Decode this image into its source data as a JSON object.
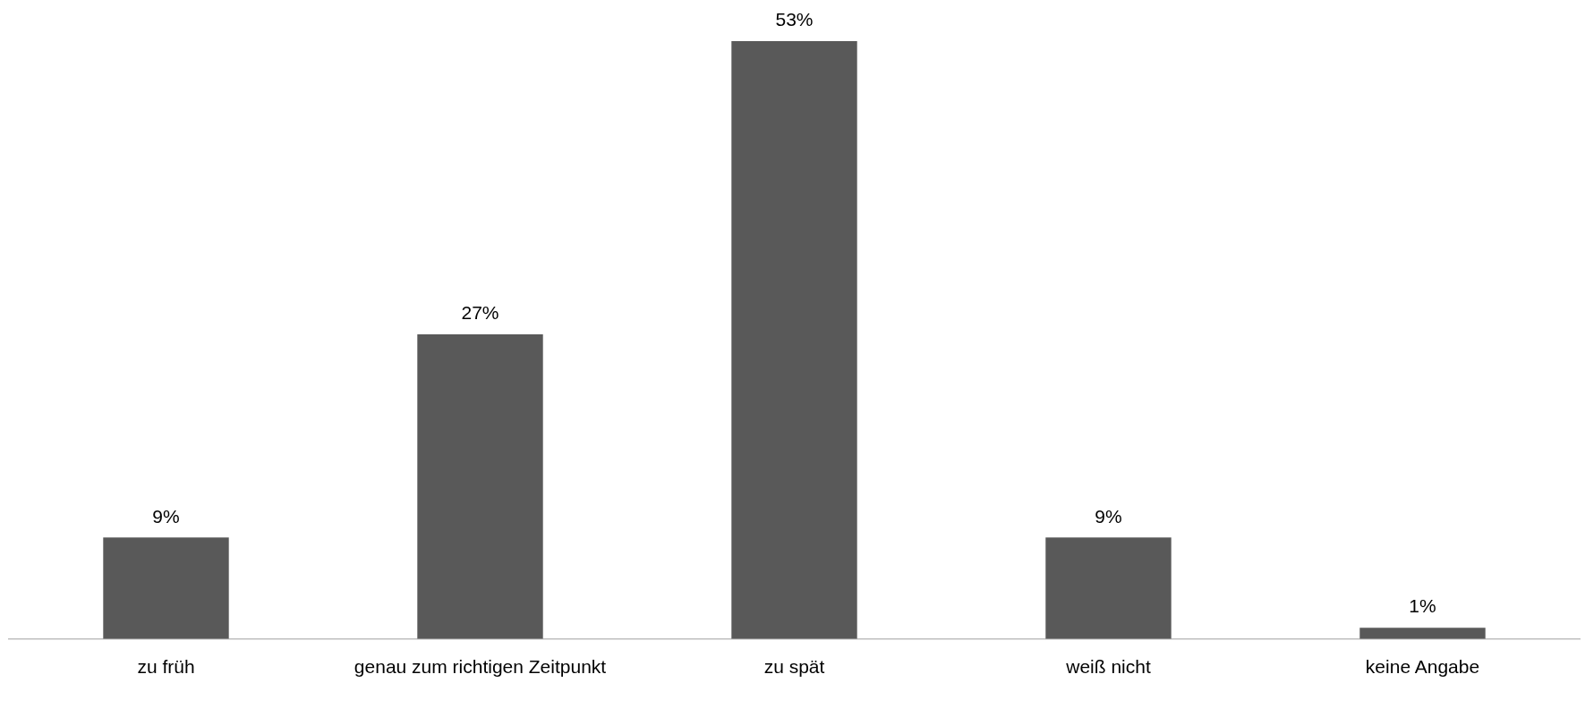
{
  "chart_data": {
    "type": "bar",
    "categories": [
      "zu früh",
      "genau zum richtigen Zeitpunkt",
      "zu spät",
      "weiß nicht",
      "keine Angabe"
    ],
    "values": [
      9,
      27,
      53,
      9,
      1
    ],
    "color": "#595959",
    "data_labels": true,
    "value_labels": [
      "9%",
      "27%",
      "53%",
      "9%",
      "1%"
    ]
  }
}
